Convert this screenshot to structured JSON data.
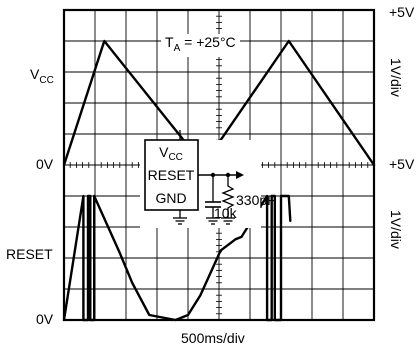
{
  "chart_data": {
    "type": "line",
    "title": "",
    "annotation": {
      "prefix": "T",
      "subscript": "A",
      "suffix": " = +25°C"
    },
    "xlabel": "500ms/div",
    "x_divisions": 10,
    "grid": true,
    "channels": [
      {
        "name": "V",
        "name_subscript": "CC",
        "scale_label": "1V/div",
        "marker_label": "+5V",
        "zero_label": "0V",
        "unit": "V",
        "ylim": [
          0,
          5
        ],
        "series": [
          {
            "x": [
              0.0,
              2.6,
              9.0,
              14.5,
              20.0
            ],
            "y": [
              0.0,
              5.0,
              0.0,
              5.0,
              0.0
            ]
          }
        ]
      },
      {
        "name": "RESET",
        "scale_label": "1V/div",
        "marker_label": "+5V",
        "zero_label": "0V",
        "unit": "V",
        "ylim": [
          0,
          5
        ],
        "series": [
          {
            "x": [
              0.0,
              1.25,
              1.25,
              1.55,
              1.55,
              1.7,
              1.7,
              1.95,
              1.95,
              3.6,
              4.4,
              5.5,
              7.2,
              8.0,
              8.8,
              10.1,
              11.05,
              11.45,
              13.1,
              13.1,
              13.4,
              13.4,
              13.6,
              13.6,
              14.0,
              14.0,
              14.5,
              14.6
            ],
            "y": [
              0.0,
              5.0,
              0.0,
              0.0,
              5.0,
              5.0,
              0.0,
              0.0,
              5.0,
              2.7,
              1.5,
              0.2,
              0.0,
              0.2,
              1.0,
              2.8,
              3.25,
              3.35,
              5.0,
              0.0,
              0.0,
              5.0,
              5.0,
              0.0,
              0.0,
              5.0,
              5.0,
              4.0
            ]
          }
        ]
      }
    ],
    "inset_circuit": {
      "pins": [
        {
          "name": "V",
          "subscript": "CC"
        },
        {
          "name": "RESET"
        },
        {
          "name": "GND"
        }
      ],
      "capacitor_label": "330pF",
      "resistor_label": "10k"
    }
  }
}
